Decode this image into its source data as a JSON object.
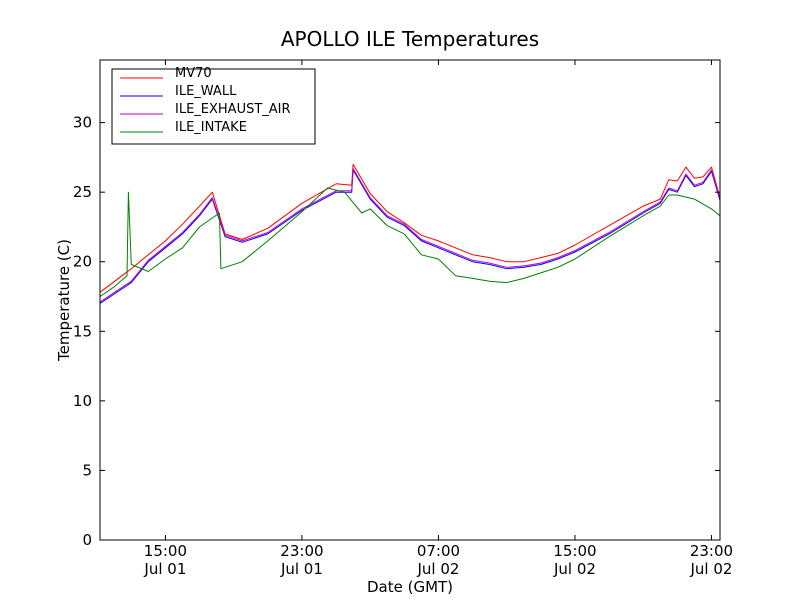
{
  "chart_data": {
    "type": "line",
    "title": "APOLLO ILE Temperatures",
    "xlabel": "Date (GMT)",
    "ylabel": "Temperature (C)",
    "x_unit": "datetime GMT",
    "xlim": [
      "2024-07-01 11:10",
      "2024-07-02 23:30"
    ],
    "ylim": [
      0,
      34.5
    ],
    "x_ticks": [
      {
        "time": "2024-07-01 15:00",
        "line1": "15:00",
        "line2": "Jul 01"
      },
      {
        "time": "2024-07-01 23:00",
        "line1": "23:00",
        "line2": "Jul 01"
      },
      {
        "time": "2024-07-02 07:00",
        "line1": "07:00",
        "line2": "Jul 02"
      },
      {
        "time": "2024-07-02 15:00",
        "line1": "15:00",
        "line2": "Jul 02"
      },
      {
        "time": "2024-07-02 23:00",
        "line1": "23:00",
        "line2": "Jul 02"
      }
    ],
    "y_ticks": [
      0,
      5,
      10,
      15,
      20,
      25,
      30
    ],
    "grid": false,
    "legend_position": "top-left",
    "series": [
      {
        "name": "MV70",
        "color": "#ff0000",
        "x": [
          "2024-07-01 11:10",
          "2024-07-01 13:00",
          "2024-07-01 14:00",
          "2024-07-01 15:00",
          "2024-07-01 16:00",
          "2024-07-01 17:00",
          "2024-07-01 17:45",
          "2024-07-01 18:30",
          "2024-07-01 19:30",
          "2024-07-01 21:00",
          "2024-07-01 23:00",
          "2024-07-02 01:00",
          "2024-07-02 01:55",
          "2024-07-02 02:00",
          "2024-07-02 03:00",
          "2024-07-02 04:00",
          "2024-07-02 05:00",
          "2024-07-02 06:00",
          "2024-07-02 07:00",
          "2024-07-02 08:00",
          "2024-07-02 09:00",
          "2024-07-02 10:00",
          "2024-07-02 11:00",
          "2024-07-02 12:00",
          "2024-07-02 13:00",
          "2024-07-02 14:00",
          "2024-07-02 15:00",
          "2024-07-02 17:00",
          "2024-07-02 19:00",
          "2024-07-02 20:00",
          "2024-07-02 20:30",
          "2024-07-02 21:00",
          "2024-07-02 21:30",
          "2024-07-02 22:00",
          "2024-07-02 22:30",
          "2024-07-02 23:00",
          "2024-07-02 23:30"
        ],
        "y": [
          17.8,
          19.5,
          20.5,
          21.5,
          22.7,
          24.0,
          25.0,
          22.0,
          21.6,
          22.4,
          24.2,
          25.6,
          25.5,
          27.0,
          24.9,
          23.6,
          22.8,
          21.9,
          21.5,
          21.0,
          20.5,
          20.3,
          20.0,
          20.0,
          20.3,
          20.6,
          21.2,
          22.6,
          24.0,
          24.5,
          25.9,
          25.8,
          26.8,
          26.0,
          26.1,
          26.8,
          24.6
        ]
      },
      {
        "name": "ILE_WALL",
        "color": "#0000ff",
        "x": [
          "2024-07-01 11:10",
          "2024-07-01 13:00",
          "2024-07-01 14:00",
          "2024-07-01 15:00",
          "2024-07-01 16:00",
          "2024-07-01 17:00",
          "2024-07-01 17:45",
          "2024-07-01 18:30",
          "2024-07-01 19:30",
          "2024-07-01 21:00",
          "2024-07-01 23:00",
          "2024-07-02 01:00",
          "2024-07-02 01:55",
          "2024-07-02 02:00",
          "2024-07-02 03:00",
          "2024-07-02 04:00",
          "2024-07-02 05:00",
          "2024-07-02 06:00",
          "2024-07-02 07:00",
          "2024-07-02 08:00",
          "2024-07-02 09:00",
          "2024-07-02 10:00",
          "2024-07-02 11:00",
          "2024-07-02 12:00",
          "2024-07-02 13:00",
          "2024-07-02 14:00",
          "2024-07-02 15:00",
          "2024-07-02 17:00",
          "2024-07-02 19:00",
          "2024-07-02 20:00",
          "2024-07-02 20:30",
          "2024-07-02 21:00",
          "2024-07-02 21:30",
          "2024-07-02 22:00",
          "2024-07-02 22:30",
          "2024-07-02 23:00",
          "2024-07-02 23:30"
        ],
        "y": [
          17.0,
          18.5,
          20.0,
          21.0,
          22.0,
          23.3,
          24.5,
          21.8,
          21.4,
          22.0,
          23.7,
          25.0,
          25.0,
          26.6,
          24.5,
          23.2,
          22.6,
          21.5,
          21.0,
          20.5,
          20.0,
          19.8,
          19.5,
          19.6,
          19.8,
          20.2,
          20.7,
          22.0,
          23.5,
          24.2,
          25.2,
          25.0,
          26.2,
          25.4,
          25.6,
          26.5,
          24.4
        ]
      },
      {
        "name": "ILE_EXHAUST_AIR",
        "color": "#bf00bf",
        "x": [
          "2024-07-01 11:10",
          "2024-07-01 13:00",
          "2024-07-01 14:00",
          "2024-07-01 15:00",
          "2024-07-01 16:00",
          "2024-07-01 17:00",
          "2024-07-01 17:45",
          "2024-07-01 18:30",
          "2024-07-01 19:30",
          "2024-07-01 21:00",
          "2024-07-01 23:00",
          "2024-07-02 01:00",
          "2024-07-02 01:55",
          "2024-07-02 02:00",
          "2024-07-02 03:00",
          "2024-07-02 04:00",
          "2024-07-02 05:00",
          "2024-07-02 06:00",
          "2024-07-02 07:00",
          "2024-07-02 08:00",
          "2024-07-02 09:00",
          "2024-07-02 10:00",
          "2024-07-02 11:00",
          "2024-07-02 12:00",
          "2024-07-02 13:00",
          "2024-07-02 14:00",
          "2024-07-02 15:00",
          "2024-07-02 17:00",
          "2024-07-02 19:00",
          "2024-07-02 20:00",
          "2024-07-02 20:30",
          "2024-07-02 21:00",
          "2024-07-02 21:30",
          "2024-07-02 22:00",
          "2024-07-02 22:30",
          "2024-07-02 23:00",
          "2024-07-02 23:30"
        ],
        "y": [
          17.1,
          18.6,
          20.1,
          21.1,
          22.1,
          23.4,
          24.6,
          21.9,
          21.5,
          22.1,
          23.8,
          25.1,
          25.1,
          26.7,
          24.6,
          23.3,
          22.7,
          21.6,
          21.1,
          20.6,
          20.1,
          19.9,
          19.6,
          19.7,
          19.9,
          20.3,
          20.8,
          22.1,
          23.6,
          24.3,
          25.3,
          25.1,
          26.3,
          25.5,
          25.7,
          26.6,
          24.5
        ]
      },
      {
        "name": "ILE_INTAKE",
        "color": "#008000",
        "x": [
          "2024-07-01 11:10",
          "2024-07-01 12:00",
          "2024-07-01 12:45",
          "2024-07-01 12:50",
          "2024-07-01 13:00",
          "2024-07-01 14:00",
          "2024-07-01 15:00",
          "2024-07-01 16:00",
          "2024-07-01 17:00",
          "2024-07-01 18:10",
          "2024-07-01 18:15",
          "2024-07-01 19:30",
          "2024-07-01 21:00",
          "2024-07-01 23:00",
          "2024-07-02 00:30",
          "2024-07-02 01:30",
          "2024-07-02 02:30",
          "2024-07-02 03:00",
          "2024-07-02 04:00",
          "2024-07-02 05:00",
          "2024-07-02 06:00",
          "2024-07-02 07:00",
          "2024-07-02 08:00",
          "2024-07-02 09:00",
          "2024-07-02 10:00",
          "2024-07-02 11:00",
          "2024-07-02 12:00",
          "2024-07-02 13:00",
          "2024-07-02 14:00",
          "2024-07-02 15:00",
          "2024-07-02 17:00",
          "2024-07-02 19:00",
          "2024-07-02 20:00",
          "2024-07-02 20:30",
          "2024-07-02 21:00",
          "2024-07-02 22:00",
          "2024-07-02 23:00",
          "2024-07-02 23:30"
        ],
        "y": [
          17.5,
          18.2,
          19.0,
          25.0,
          19.8,
          19.3,
          20.2,
          21.0,
          22.5,
          23.5,
          19.5,
          20.0,
          21.5,
          23.6,
          25.3,
          25.0,
          23.5,
          23.8,
          22.6,
          22.0,
          20.5,
          20.2,
          19.0,
          18.8,
          18.6,
          18.5,
          18.8,
          19.2,
          19.6,
          20.2,
          21.8,
          23.3,
          24.0,
          24.8,
          24.8,
          24.5,
          23.8,
          23.3
        ]
      }
    ]
  }
}
